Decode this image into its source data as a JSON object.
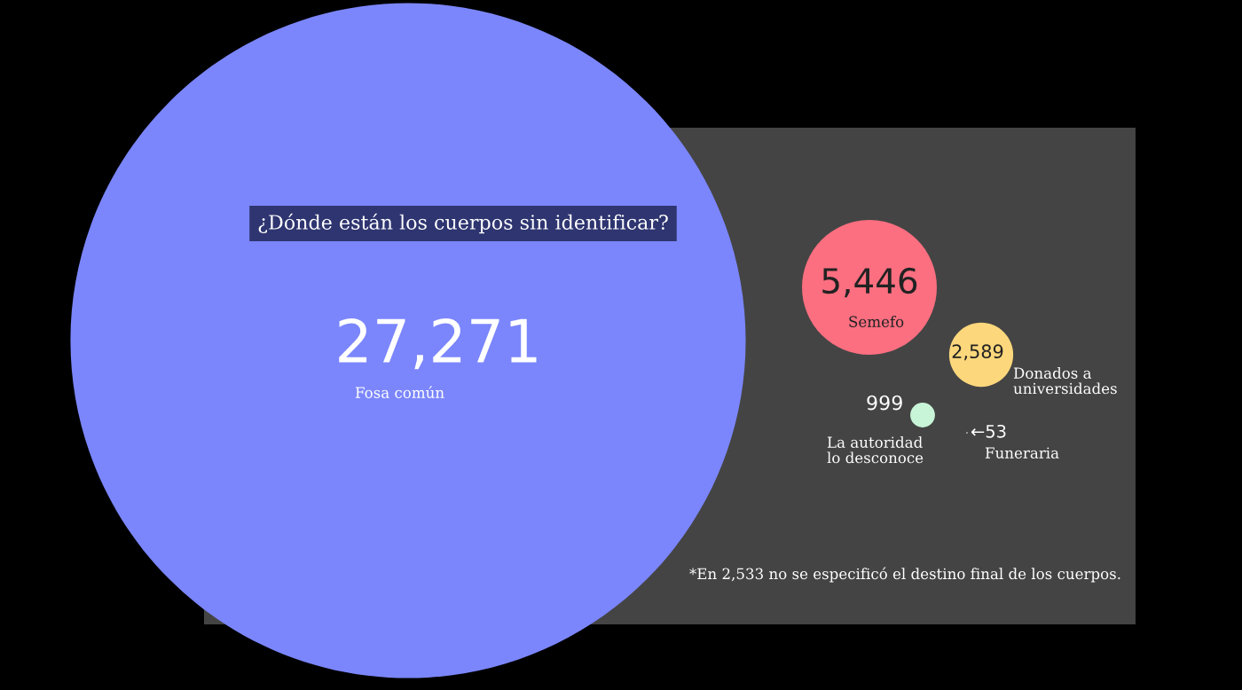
{
  "chart_data": {
    "type": "other",
    "title": "¿Dónde están los cuerpos sin identificar?",
    "categories": [
      "Fosa común",
      "Semefo",
      "Donados a\nuniversidades",
      "La autoridad\nlo desconoce",
      "Funeraria"
    ],
    "values": [
      27271,
      5446,
      2589,
      999,
      53
    ],
    "value_labels": [
      "27,271",
      "5,446",
      "2,589",
      "999",
      "←53"
    ],
    "colors": [
      "#7b86fc",
      "#fb6f80",
      "#fdd77c",
      "#c8f5d8",
      "#ffffff"
    ],
    "annotations": [
      "*En 2,533 no se especificó el destino final de los cuerpos."
    ]
  }
}
